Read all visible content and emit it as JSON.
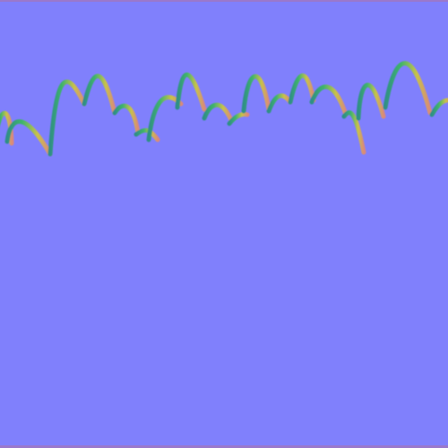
{
  "image": {
    "subject": "normal-map-texture",
    "colors": {
      "background": "#8080fc",
      "border": "#9a78cc",
      "stroke_green": "#3fb56a",
      "stroke_yellow": "#c9c24a",
      "stroke_salmon": "#d98a7a",
      "stroke_dark": "#3a7a8a"
    }
  }
}
